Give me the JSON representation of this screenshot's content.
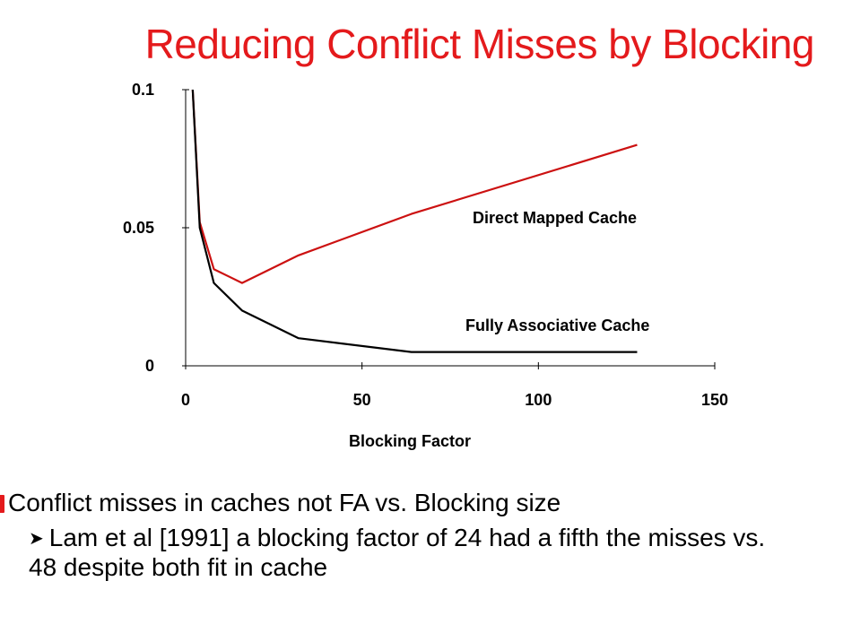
{
  "slide": {
    "title": "Reducing Conflict Misses by Blocking",
    "bullets": [
      "Conflict misses in caches not FA vs. Blocking size",
      "Lam et al [1991] a blocking factor of 24 had a fifth the misses vs. 48 despite both fit in cache"
    ]
  },
  "chart_data": {
    "type": "line",
    "xlabel": "Blocking Factor",
    "ylabel": "",
    "xlim": [
      0,
      150
    ],
    "ylim": [
      0,
      0.1
    ],
    "x_ticks": [
      "0",
      "50",
      "100",
      "150"
    ],
    "y_ticks": [
      "0",
      "0.05",
      "0.1"
    ],
    "grid": false,
    "colors": {
      "direct": "#cc1111",
      "fully": "#000000"
    },
    "series": [
      {
        "name": "Direct Mapped Cache",
        "x": [
          2,
          4,
          8,
          16,
          32,
          64,
          128
        ],
        "y": [
          0.1,
          0.052,
          0.035,
          0.03,
          0.04,
          0.055,
          0.08
        ]
      },
      {
        "name": "Fully Associative Cache",
        "x": [
          2,
          4,
          8,
          16,
          32,
          64,
          128
        ],
        "y": [
          0.1,
          0.05,
          0.03,
          0.02,
          0.01,
          0.005,
          0.005
        ]
      }
    ]
  }
}
